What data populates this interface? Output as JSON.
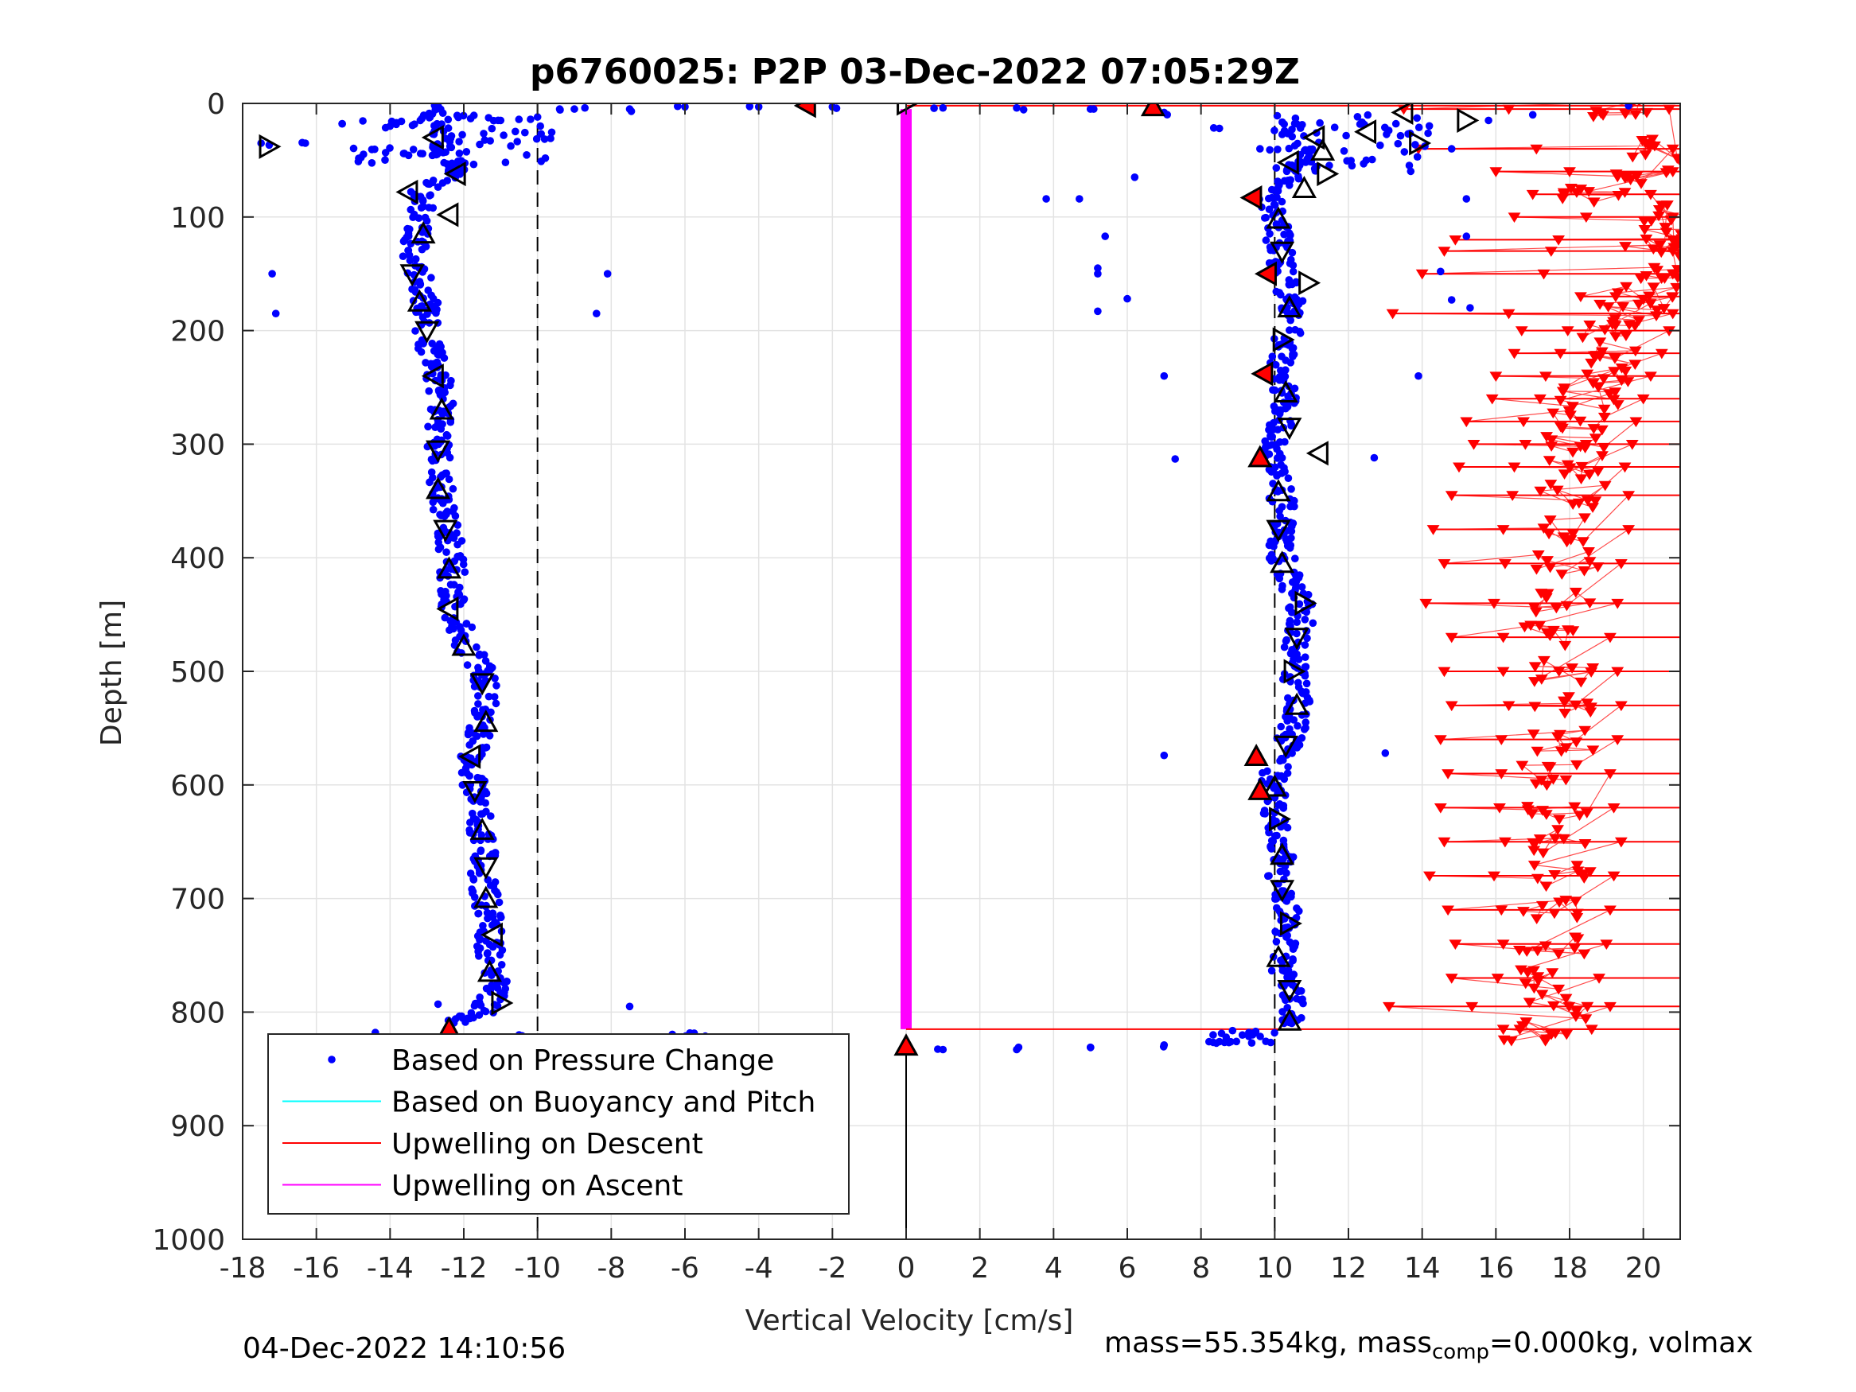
{
  "chart_data": {
    "type": "scatter",
    "title": "p6760025: P2P 03-Dec-2022 07:05:29Z",
    "xlabel": "Vertical Velocity [cm/s]",
    "ylabel": "Depth [m]",
    "xlim": [
      -18,
      21
    ],
    "ylim": [
      0,
      1000
    ],
    "y_reversed": true,
    "grid": true,
    "x_ticks": [
      -18,
      -16,
      -14,
      -12,
      -10,
      -8,
      -6,
      -4,
      -2,
      0,
      2,
      4,
      6,
      8,
      10,
      12,
      14,
      16,
      18,
      20
    ],
    "y_ticks": [
      0,
      100,
      200,
      300,
      400,
      500,
      600,
      700,
      800,
      900,
      1000
    ],
    "reference_lines": [
      {
        "x": -10,
        "style": "dashed"
      },
      {
        "x": 10,
        "style": "dashed"
      },
      {
        "x": 0,
        "style": "solid",
        "y_range": [
          830,
          1000
        ]
      }
    ],
    "legend_position": "lower-left",
    "series": [
      {
        "name": "Based on Pressure Change",
        "marker": "dot",
        "color": "#0000ff",
        "descent": {
          "depth": [
            0,
            20,
            40,
            60,
            80,
            100,
            120,
            140,
            160,
            180,
            200,
            220,
            240,
            260,
            280,
            300,
            320,
            340,
            360,
            380,
            400,
            420,
            440,
            460,
            480,
            500,
            520,
            540,
            560,
            580,
            600,
            620,
            640,
            660,
            680,
            700,
            720,
            740,
            760,
            780,
            800,
            810
          ],
          "velocity": [
            -12.8,
            -12.9,
            -12.5,
            -12.2,
            -13.2,
            -13.1,
            -13.3,
            -13.3,
            -13.1,
            -13.0,
            -13.0,
            -12.9,
            -12.7,
            -12.6,
            -12.6,
            -12.7,
            -12.7,
            -12.6,
            -12.5,
            -12.4,
            -12.3,
            -12.3,
            -12.3,
            -12.1,
            -11.9,
            -11.5,
            -11.4,
            -11.4,
            -11.6,
            -11.8,
            -11.7,
            -11.6,
            -11.5,
            -11.4,
            -11.5,
            -11.4,
            -11.3,
            -11.3,
            -11.2,
            -11.1,
            -11.5,
            -12.3
          ]
        },
        "ascent": {
          "depth": [
            810,
            800,
            780,
            760,
            740,
            720,
            700,
            680,
            660,
            640,
            620,
            600,
            580,
            560,
            540,
            520,
            500,
            480,
            460,
            440,
            420,
            400,
            380,
            360,
            340,
            320,
            300,
            280,
            260,
            240,
            220,
            200,
            180,
            160,
            140,
            120,
            100,
            80,
            60,
            40
          ],
          "velocity": [
            10.4,
            10.5,
            10.4,
            10.2,
            10.3,
            10.4,
            10.2,
            10.1,
            10.2,
            10.1,
            10.0,
            9.9,
            10.1,
            10.4,
            10.6,
            10.6,
            10.5,
            10.6,
            10.7,
            10.7,
            10.4,
            10.2,
            10.1,
            10.2,
            10.2,
            10.0,
            10.0,
            10.2,
            10.3,
            10.1,
            10.2,
            10.4,
            10.5,
            10.3,
            10.2,
            10.1,
            10.0,
            9.8,
            10.6,
            11.2
          ]
        },
        "turnaround_points": [
          {
            "velocity": -10.5,
            "depth": 820
          },
          {
            "velocity": -9,
            "depth": 830
          },
          {
            "velocity": -7,
            "depth": 830
          },
          {
            "velocity": -6,
            "depth": 822
          },
          {
            "velocity": -4,
            "depth": 832
          },
          {
            "velocity": -2,
            "depth": 833
          },
          {
            "velocity": 1,
            "depth": 833
          },
          {
            "velocity": 3,
            "depth": 833
          },
          {
            "velocity": 5,
            "depth": 831
          },
          {
            "velocity": 7,
            "depth": 829
          },
          {
            "velocity": 8.5,
            "depth": 826
          },
          {
            "velocity": 9.4,
            "depth": 820
          },
          {
            "velocity": -9,
            "depth": 5
          },
          {
            "velocity": -7.5,
            "depth": 5
          },
          {
            "velocity": -6,
            "depth": 3
          },
          {
            "velocity": -4,
            "depth": 3
          },
          {
            "velocity": -2,
            "depth": 3
          },
          {
            "velocity": 1,
            "depth": 4
          },
          {
            "velocity": 3,
            "depth": 4
          },
          {
            "velocity": 5,
            "depth": 5
          },
          {
            "velocity": 7,
            "depth": 8
          },
          {
            "velocity": 8.5,
            "depth": 22
          },
          {
            "velocity": 9.6,
            "depth": 40
          },
          {
            "velocity": -17.5,
            "depth": 35
          },
          {
            "velocity": -16.3,
            "depth": 35
          },
          {
            "velocity": -15.3,
            "depth": 18
          },
          {
            "velocity": -14,
            "depth": 20
          },
          {
            "velocity": -11,
            "depth": 15
          },
          {
            "velocity": -10,
            "depth": 12
          },
          {
            "velocity": -9.4,
            "depth": 5
          }
        ],
        "outliers": [
          {
            "velocity": -17.2,
            "depth": 150
          },
          {
            "velocity": -17.1,
            "depth": 185
          },
          {
            "velocity": -8.1,
            "depth": 150
          },
          {
            "velocity": -8.4,
            "depth": 185
          },
          {
            "velocity": -14.4,
            "depth": 818
          },
          {
            "velocity": -12.7,
            "depth": 793
          },
          {
            "velocity": -7.5,
            "depth": 795
          },
          {
            "velocity": 3.8,
            "depth": 84
          },
          {
            "velocity": 4.7,
            "depth": 84
          },
          {
            "velocity": 5.4,
            "depth": 117
          },
          {
            "velocity": 5.2,
            "depth": 145
          },
          {
            "velocity": 5.2,
            "depth": 150
          },
          {
            "velocity": 5.2,
            "depth": 183
          },
          {
            "velocity": 6.0,
            "depth": 172
          },
          {
            "velocity": 6.2,
            "depth": 65
          },
          {
            "velocity": 7.0,
            "depth": 240
          },
          {
            "velocity": 7.0,
            "depth": 574
          },
          {
            "velocity": 7.3,
            "depth": 313
          },
          {
            "velocity": 13.0,
            "depth": 572
          },
          {
            "velocity": 12.7,
            "depth": 312
          },
          {
            "velocity": 13.9,
            "depth": 240
          },
          {
            "velocity": 14.5,
            "depth": 148
          },
          {
            "velocity": 15.2,
            "depth": 117
          },
          {
            "velocity": 15.2,
            "depth": 84
          },
          {
            "velocity": 15.3,
            "depth": 180
          },
          {
            "velocity": 14.8,
            "depth": 173
          },
          {
            "velocity": 19.6,
            "depth": 2
          },
          {
            "velocity": 17.0,
            "depth": 10
          },
          {
            "velocity": 15.8,
            "depth": 15
          },
          {
            "velocity": 14.8,
            "depth": 40
          }
        ]
      },
      {
        "name": "Based on Buoyancy and Pitch",
        "marker": "line",
        "color": "#00ffff"
      },
      {
        "name": "Upwelling on Descent",
        "marker": "triangle-down",
        "color": "#ff0000",
        "depth": [
          5,
          40,
          60,
          80,
          100,
          120,
          130,
          150,
          170,
          185,
          200,
          220,
          240,
          260,
          280,
          300,
          320,
          345,
          375,
          405,
          440,
          470,
          500,
          530,
          560,
          590,
          620,
          650,
          680,
          710,
          740,
          770,
          795,
          815
        ],
        "values": [
          19.2,
          20.3,
          20.0,
          18.7,
          20.4,
          20.5,
          20.4,
          20.6,
          20.2,
          19.5,
          19.2,
          19.0,
          18.7,
          18.5,
          18.3,
          18.2,
          18.0,
          18.1,
          18.1,
          17.9,
          17.8,
          17.6,
          17.8,
          17.9,
          17.8,
          17.6,
          17.7,
          17.9,
          17.7,
          17.6,
          17.5,
          17.3,
          17.6,
          17.1
        ],
        "spread_left": [
          13.5,
          13.9,
          16.0,
          17.0,
          16.5,
          14.9,
          14.6,
          14.0,
          18.3,
          13.2,
          16.7,
          16.5,
          16.0,
          15.9,
          15.2,
          15.4,
          15.0,
          14.8,
          14.3,
          14.6,
          14.1,
          14.8,
          14.6,
          14.8,
          14.5,
          14.7,
          14.5,
          14.6,
          14.2,
          14.7,
          14.9,
          14.8,
          13.1,
          16.2
        ]
      },
      {
        "name": "Upwelling on Ascent",
        "marker": "line",
        "color": "#ff00ff",
        "x": [
          0,
          0
        ],
        "depth": [
          5,
          815
        ]
      }
    ],
    "markers": {
      "open_triangles_descent": [
        {
          "velocity": -17.3,
          "depth": 38,
          "dir": "right"
        },
        {
          "velocity": -12.8,
          "depth": 30,
          "dir": "left"
        },
        {
          "velocity": -12.2,
          "depth": 62,
          "dir": "left"
        },
        {
          "velocity": -13.5,
          "depth": 78,
          "dir": "left"
        },
        {
          "velocity": -12.4,
          "depth": 98,
          "dir": "left"
        },
        {
          "velocity": -13.1,
          "depth": 115,
          "dir": "up"
        },
        {
          "velocity": -13.4,
          "depth": 150,
          "dir": "down"
        },
        {
          "velocity": -13.2,
          "depth": 175,
          "dir": "up"
        },
        {
          "velocity": -13.0,
          "depth": 200,
          "dir": "down"
        },
        {
          "velocity": -12.8,
          "depth": 240,
          "dir": "left"
        },
        {
          "velocity": -12.6,
          "depth": 270,
          "dir": "up"
        },
        {
          "velocity": -12.7,
          "depth": 305,
          "dir": "down"
        },
        {
          "velocity": -12.7,
          "depth": 340,
          "dir": "up"
        },
        {
          "velocity": -12.5,
          "depth": 375,
          "dir": "down"
        },
        {
          "velocity": -12.4,
          "depth": 410,
          "dir": "up"
        },
        {
          "velocity": -12.4,
          "depth": 445,
          "dir": "left"
        },
        {
          "velocity": -12.0,
          "depth": 478,
          "dir": "up"
        },
        {
          "velocity": -11.5,
          "depth": 510,
          "dir": "down"
        },
        {
          "velocity": -11.4,
          "depth": 545,
          "dir": "up"
        },
        {
          "velocity": -11.8,
          "depth": 575,
          "dir": "left"
        },
        {
          "velocity": -11.7,
          "depth": 605,
          "dir": "down"
        },
        {
          "velocity": -11.5,
          "depth": 640,
          "dir": "up"
        },
        {
          "velocity": -11.4,
          "depth": 672,
          "dir": "down"
        },
        {
          "velocity": -11.4,
          "depth": 700,
          "dir": "up"
        },
        {
          "velocity": -11.2,
          "depth": 732,
          "dir": "left"
        },
        {
          "velocity": -11.3,
          "depth": 765,
          "dir": "up"
        },
        {
          "velocity": -11.0,
          "depth": 792,
          "dir": "right"
        }
      ],
      "open_triangles_ascent": [
        {
          "velocity": 10.4,
          "depth": 808,
          "dir": "up"
        },
        {
          "velocity": 10.4,
          "depth": 780,
          "dir": "down"
        },
        {
          "velocity": 10.1,
          "depth": 752,
          "dir": "up"
        },
        {
          "velocity": 10.4,
          "depth": 722,
          "dir": "right"
        },
        {
          "velocity": 10.2,
          "depth": 692,
          "dir": "down"
        },
        {
          "velocity": 10.2,
          "depth": 662,
          "dir": "up"
        },
        {
          "velocity": 10.1,
          "depth": 630,
          "dir": "right"
        },
        {
          "velocity": 10.0,
          "depth": 602,
          "dir": "up"
        },
        {
          "velocity": 10.3,
          "depth": 565,
          "dir": "down"
        },
        {
          "velocity": 10.6,
          "depth": 530,
          "dir": "up"
        },
        {
          "velocity": 10.5,
          "depth": 500,
          "dir": "right"
        },
        {
          "velocity": 10.6,
          "depth": 470,
          "dir": "down"
        },
        {
          "velocity": 10.8,
          "depth": 440,
          "dir": "right"
        },
        {
          "velocity": 10.2,
          "depth": 405,
          "dir": "up"
        },
        {
          "velocity": 10.1,
          "depth": 375,
          "dir": "down"
        },
        {
          "velocity": 10.1,
          "depth": 342,
          "dir": "up"
        },
        {
          "velocity": 10.4,
          "depth": 285,
          "dir": "down"
        },
        {
          "velocity": 10.3,
          "depth": 255,
          "dir": "up"
        },
        {
          "velocity": 10.2,
          "depth": 208,
          "dir": "right"
        },
        {
          "velocity": 10.4,
          "depth": 180,
          "dir": "up"
        },
        {
          "velocity": 10.9,
          "depth": 158,
          "dir": "right"
        },
        {
          "velocity": 10.2,
          "depth": 130,
          "dir": "down"
        },
        {
          "velocity": 10.1,
          "depth": 102,
          "dir": "up"
        },
        {
          "velocity": 11.2,
          "depth": 308,
          "dir": "left"
        },
        {
          "velocity": 10.8,
          "depth": 75,
          "dir": "up"
        },
        {
          "velocity": 11.4,
          "depth": 62,
          "dir": "right"
        },
        {
          "velocity": 10.4,
          "depth": 52,
          "dir": "left"
        },
        {
          "velocity": 11.3,
          "depth": 42,
          "dir": "up"
        },
        {
          "velocity": 11.1,
          "depth": 30,
          "dir": "left"
        },
        {
          "velocity": 12.5,
          "depth": 25,
          "dir": "left"
        },
        {
          "velocity": 13.5,
          "depth": 8,
          "dir": "left"
        },
        {
          "velocity": 13.9,
          "depth": 35,
          "dir": "right"
        },
        {
          "velocity": 15.2,
          "depth": 15,
          "dir": "right"
        }
      ],
      "filled_red_triangles": [
        {
          "velocity": -12.4,
          "depth": 815,
          "dir": "up"
        },
        {
          "velocity": -2.7,
          "depth": 2,
          "dir": "left"
        },
        {
          "velocity": 0,
          "depth": 830,
          "dir": "up"
        },
        {
          "velocity": 6.7,
          "depth": 3,
          "dir": "up"
        },
        {
          "velocity": 9.4,
          "depth": 83,
          "dir": "left"
        },
        {
          "velocity": 9.8,
          "depth": 150,
          "dir": "left"
        },
        {
          "velocity": 9.7,
          "depth": 238,
          "dir": "left"
        },
        {
          "velocity": 9.6,
          "depth": 312,
          "dir": "up"
        },
        {
          "velocity": 9.5,
          "depth": 575,
          "dir": "up"
        },
        {
          "velocity": 9.6,
          "depth": 605,
          "dir": "up"
        }
      ],
      "open_triangle_surface": {
        "velocity": 0,
        "depth": 0,
        "dir": "right"
      }
    },
    "long_red_lines_from_zero": [
      {
        "depth": 2,
        "to_velocity": 21
      },
      {
        "depth": 815,
        "to_velocity": 21
      }
    ]
  },
  "footer": {
    "timestamp": "04-Dec-2022 14:10:56",
    "mass_prefix": "mass=55.354kg, mass",
    "mass_sub": "comp",
    "mass_suffix": "=0.000kg, volmax"
  }
}
